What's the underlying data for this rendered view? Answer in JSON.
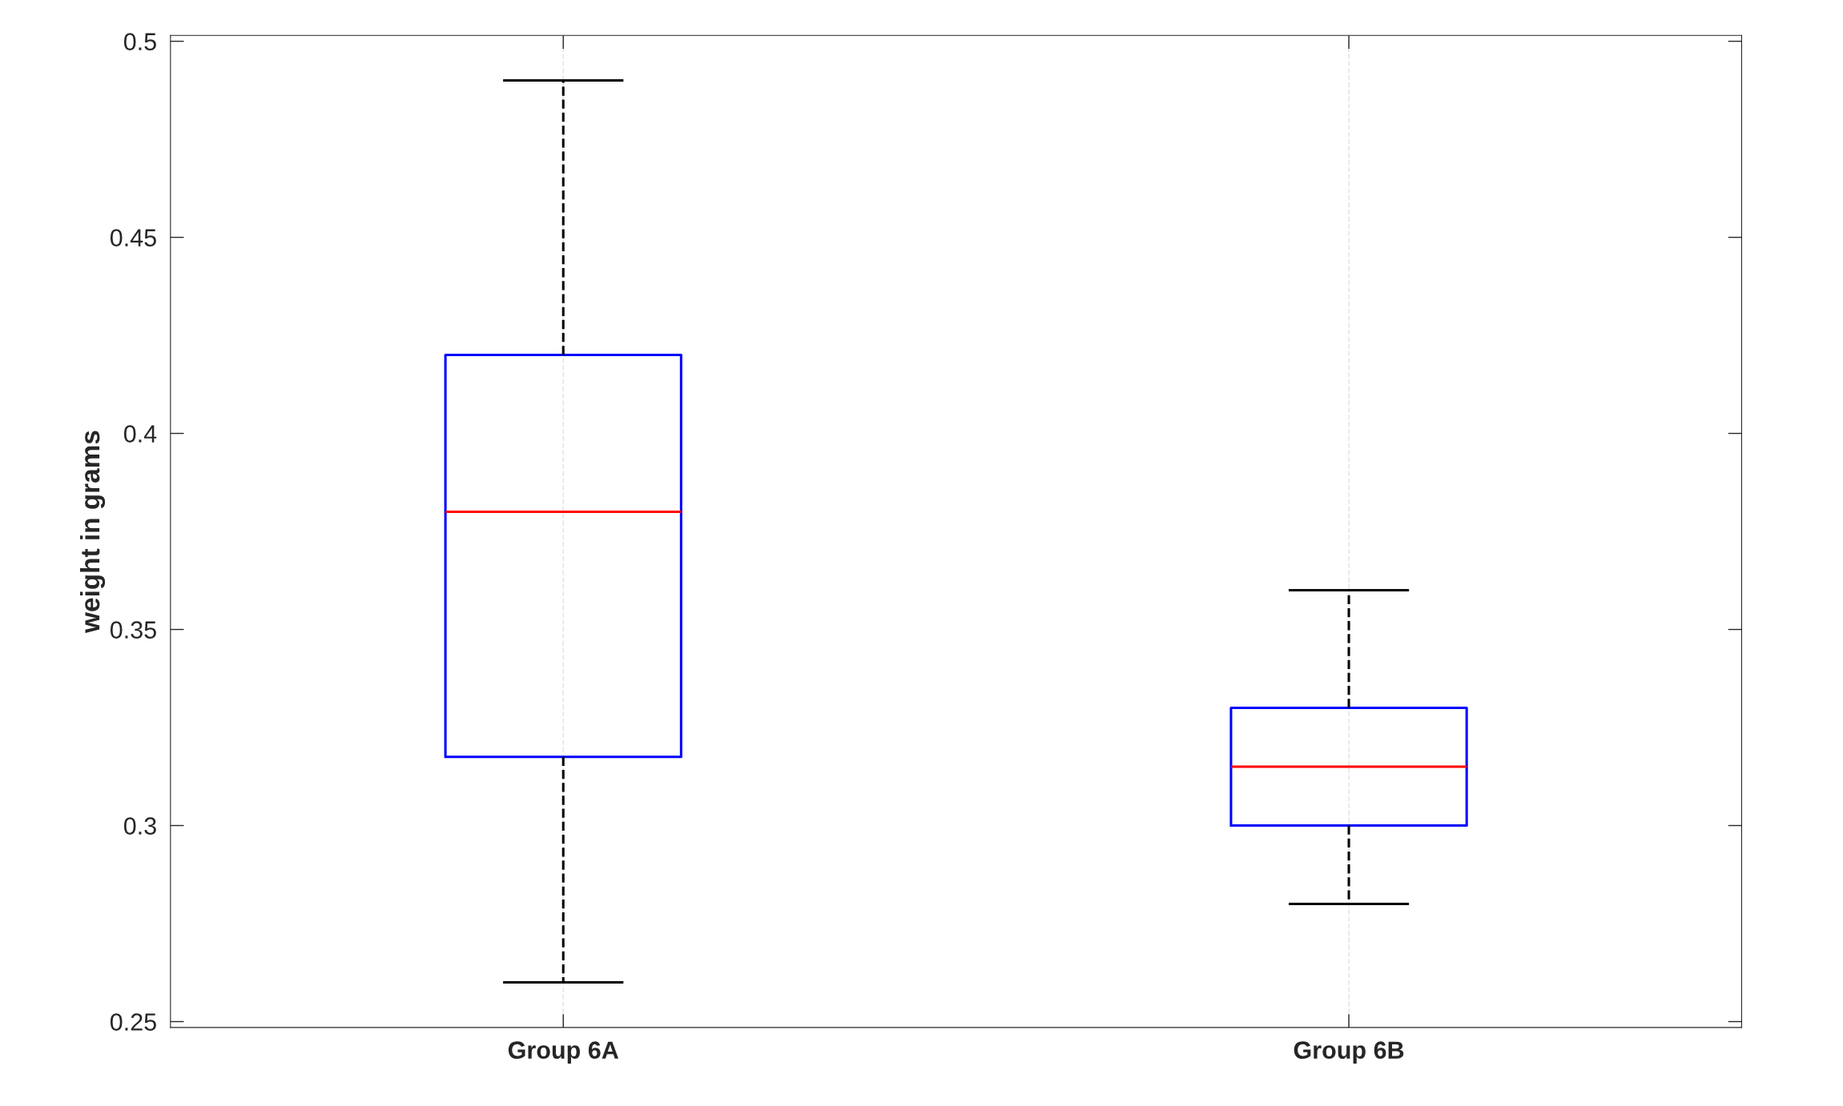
{
  "chart_data": {
    "type": "box",
    "ylabel": "weight in grams",
    "categories": [
      "Group 6A",
      "Group 6B"
    ],
    "boxes": [
      {
        "low": 0.26,
        "q1": 0.3175,
        "median": 0.38,
        "q3": 0.42,
        "high": 0.49
      },
      {
        "low": 0.28,
        "q1": 0.3,
        "median": 0.315,
        "q3": 0.33,
        "high": 0.36
      }
    ],
    "color": "#0000ff",
    "line_style": "dashed",
    "ylim": [
      0.2485,
      0.5015
    ],
    "yticks": [
      0.25,
      0.3,
      0.35,
      0.4,
      0.45,
      0.5
    ],
    "grid": "x",
    "legend": false
  }
}
